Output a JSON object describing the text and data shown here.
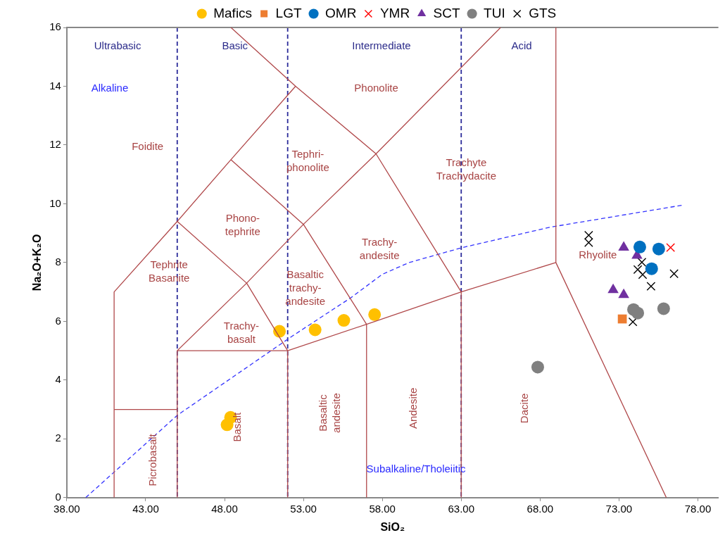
{
  "chart_data": {
    "type": "scatter",
    "xlabel": "SiO₂",
    "ylabel": "Na₂O+K₂O",
    "xlim": [
      38,
      79.3
    ],
    "ylim": [
      0,
      16
    ],
    "xticks": [
      {
        "value": 38,
        "label": "38.00"
      },
      {
        "value": 43,
        "label": "43.00"
      },
      {
        "value": 48,
        "label": "48.00"
      },
      {
        "value": 53,
        "label": "53.00"
      },
      {
        "value": 58,
        "label": "58.00"
      },
      {
        "value": 63,
        "label": "63.00"
      },
      {
        "value": 68,
        "label": "68.00"
      },
      {
        "value": 73,
        "label": "73.00"
      },
      {
        "value": 78,
        "label": "78.00"
      }
    ],
    "yticks": [
      0,
      2,
      4,
      6,
      8,
      10,
      12,
      14,
      16
    ],
    "grid": false,
    "legend": "top",
    "ref_lines": [
      {
        "axis": "x",
        "value": 45,
        "color": "#2b2b9a",
        "line_style": "dashed"
      },
      {
        "axis": "x",
        "value": 52,
        "color": "#2b2b9a",
        "line_style": "dashed"
      },
      {
        "axis": "x",
        "value": 63,
        "color": "#2b2b9a",
        "line_style": "dashed"
      }
    ],
    "series": [
      {
        "type": "line",
        "color": "#b0484a",
        "x": [
          41,
          41,
          45,
          48.4,
          52.5
        ],
        "values": [
          0,
          7,
          9.4,
          11.5,
          14
        ]
      },
      {
        "type": "line",
        "color": "#b0484a",
        "x": [
          41,
          45
        ],
        "values": [
          3,
          3
        ]
      },
      {
        "type": "line",
        "color": "#b0484a",
        "x": [
          45,
          45,
          52
        ],
        "values": [
          0,
          5,
          5
        ]
      },
      {
        "type": "line",
        "color": "#b0484a",
        "x": [
          52,
          52,
          57,
          63,
          69
        ],
        "values": [
          0,
          5,
          5.9,
          7,
          8
        ]
      },
      {
        "type": "line",
        "color": "#b0484a",
        "x": [
          57,
          57
        ],
        "values": [
          0,
          5.9
        ]
      },
      {
        "type": "line",
        "color": "#b0484a",
        "x": [
          63,
          63
        ],
        "values": [
          0,
          7
        ]
      },
      {
        "type": "line",
        "color": "#b0484a",
        "x": [
          69,
          69,
          76
        ],
        "values": [
          16,
          8,
          0
        ]
      },
      {
        "type": "line",
        "color": "#b0484a",
        "x": [
          45,
          49.4,
          53,
          57.6,
          65.5
        ],
        "values": [
          5,
          7.3,
          9.3,
          11.7,
          16
        ]
      },
      {
        "type": "line",
        "color": "#b0484a",
        "x": [
          45,
          49.4,
          52
        ],
        "values": [
          9.4,
          7.3,
          5
        ]
      },
      {
        "type": "line",
        "color": "#b0484a",
        "x": [
          48.4,
          53,
          57
        ],
        "values": [
          11.5,
          9.3,
          5.9
        ]
      },
      {
        "type": "line",
        "color": "#b0484a",
        "x": [
          48.4,
          52.5,
          57.6,
          63
        ],
        "values": [
          16,
          14,
          11.7,
          7
        ]
      },
      {
        "type": "line",
        "color": "#3333ff",
        "line_style": "dashed",
        "x": [
          39.2,
          45,
          52.3,
          56,
          58,
          59.7,
          63,
          68.6,
          77
        ],
        "values": [
          0,
          2.8,
          5.5,
          6.8,
          7.6,
          8.0,
          8.5,
          9.2,
          9.95
        ]
      },
      {
        "name": "Mafics",
        "color": "#ffc000",
        "marker": "circle",
        "x": [
          51.48,
          53.74,
          55.56,
          57.51,
          48.38,
          48.16
        ],
        "values": [
          5.66,
          5.71,
          6.03,
          6.23,
          2.73,
          2.48
        ]
      },
      {
        "name": "LGT",
        "color": "#ed7d31",
        "marker": "square",
        "x": [
          73.21
        ],
        "values": [
          6.08
        ]
      },
      {
        "name": "OMR",
        "color": "#0070c0",
        "marker": "circle",
        "x": [
          74.32,
          75.52,
          75.07
        ],
        "values": [
          8.53,
          8.46,
          7.79
        ]
      },
      {
        "name": "YMR",
        "color": "#ff0000",
        "marker": "cross",
        "x": [
          76.27
        ],
        "values": [
          8.51
        ]
      },
      {
        "name": "SCT",
        "color": "#7030a0",
        "marker": "triangle",
        "x": [
          73.3,
          74.14,
          72.63,
          73.3
        ],
        "values": [
          8.51,
          8.24,
          7.07,
          6.9
        ]
      },
      {
        "name": "TUI",
        "color": "#808080",
        "marker": "circle",
        "x": [
          73.92,
          74.19,
          75.83,
          67.85
        ],
        "values": [
          6.4,
          6.28,
          6.43,
          4.44
        ]
      },
      {
        "name": "GTS",
        "color": "#000000",
        "marker": "cross",
        "x": [
          71.08,
          71.08,
          74.45,
          74.19,
          74.5,
          75.03,
          76.49,
          73.88
        ],
        "values": [
          8.93,
          8.68,
          8.01,
          7.76,
          7.59,
          7.19,
          7.62,
          5.98
        ]
      }
    ],
    "annotations": [
      "Ultrabasic",
      "Basic",
      "Intermediate",
      "Acid",
      "Alkaline",
      "Phonolite",
      "Foidite",
      "Tephri-\nphonolite",
      "Trachyte\nTrachydacite",
      "Phono-\ntephrite",
      "Trachy-\nandesite",
      "Rhyolite",
      "Tephrite\nBasanite",
      "Basaltic\ntrachy-\nandesite",
      "Trachy-\nbasalt",
      "Picrobasalt",
      "Basalt",
      "Basaltic\nandesite",
      "Andesite",
      "Dacite",
      "Subalkaline/Tholeiitic"
    ]
  }
}
